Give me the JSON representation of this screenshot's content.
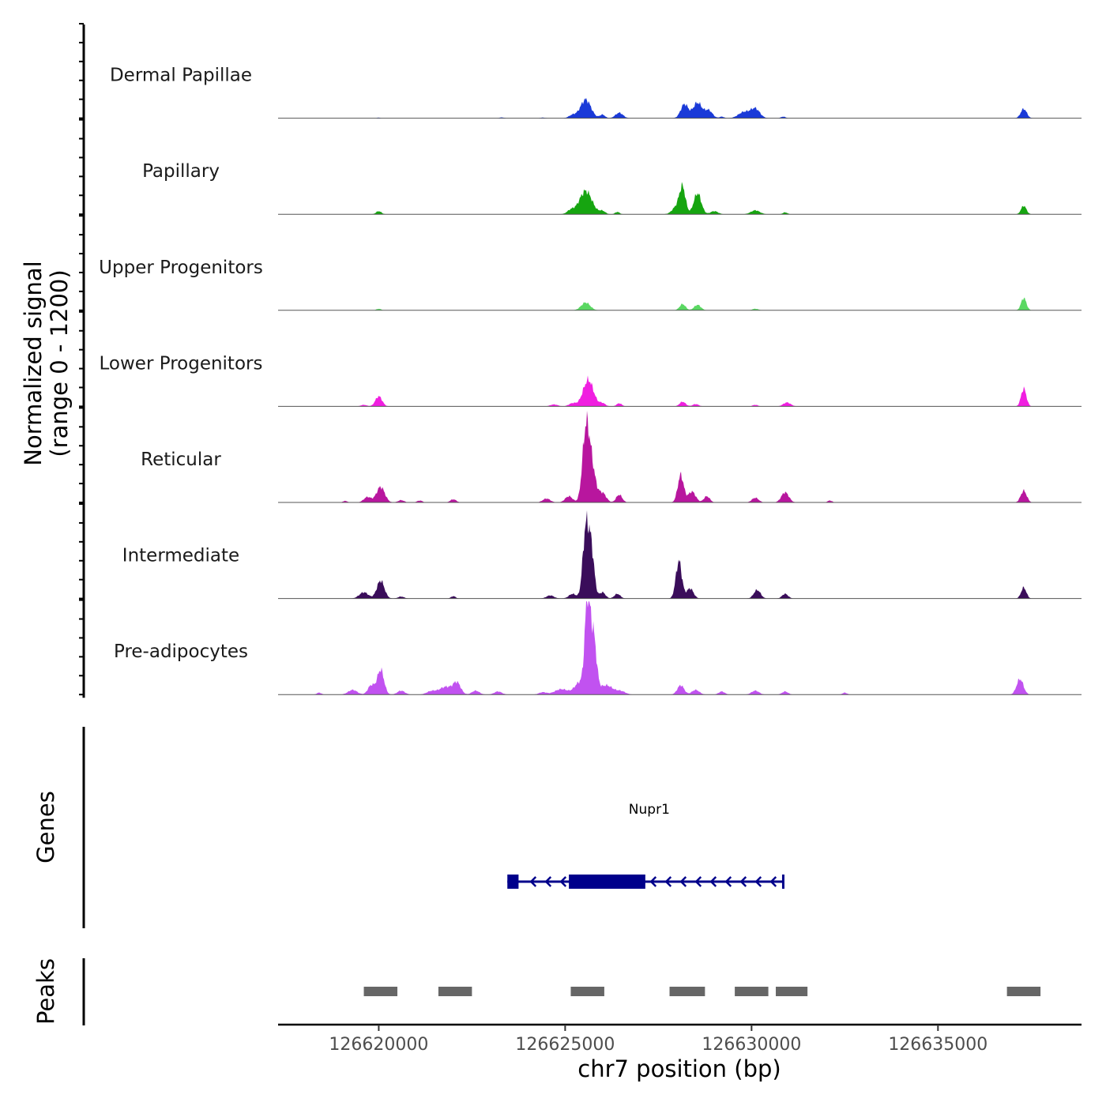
{
  "chart_data": {
    "type": "area",
    "subtype": "coverage-tracks",
    "chromosome": "chr7",
    "xlabel": "chr7 position (bp)",
    "ylabel_line1": "Normalized signal",
    "ylabel_line2": "(range 0 - 1200)",
    "xlim": [
      126617300,
      126638850
    ],
    "x_ticks": [
      {
        "value": 126620000,
        "label": "126620000"
      },
      {
        "value": 126625000,
        "label": "126625000"
      },
      {
        "value": 126630000,
        "label": "126630000"
      },
      {
        "value": 126635000,
        "label": "126635000"
      }
    ],
    "ylim": [
      0,
      1200
    ],
    "series": [
      {
        "name": "Dermal Papillae",
        "color": "#1a3ad8",
        "peaks": [
          [
            126620000,
            8,
            40
          ],
          [
            126623300,
            10,
            60
          ],
          [
            126624400,
            8,
            60
          ],
          [
            126625200,
            40,
            100
          ],
          [
            126625550,
            240,
            140
          ],
          [
            126626000,
            45,
            70
          ],
          [
            126626450,
            70,
            100
          ],
          [
            126628200,
            180,
            100
          ],
          [
            126628550,
            200,
            120
          ],
          [
            126628850,
            100,
            100
          ],
          [
            126629200,
            20,
            60
          ],
          [
            126629800,
            80,
            150
          ],
          [
            126630100,
            120,
            120
          ],
          [
            126630850,
            20,
            60
          ],
          [
            126637300,
            120,
            80
          ]
        ]
      },
      {
        "name": "Papillary",
        "color": "#16a510",
        "peaks": [
          [
            126620000,
            40,
            70
          ],
          [
            126625550,
            300,
            170
          ],
          [
            126625150,
            50,
            100
          ],
          [
            126626000,
            40,
            80
          ],
          [
            126626400,
            30,
            60
          ],
          [
            126628000,
            100,
            120
          ],
          [
            126628150,
            320,
            80
          ],
          [
            126628550,
            270,
            100
          ],
          [
            126629000,
            40,
            100
          ],
          [
            126630100,
            50,
            120
          ],
          [
            126630900,
            25,
            60
          ],
          [
            126637300,
            110,
            70
          ]
        ]
      },
      {
        "name": "Upper Progenitors",
        "color": "#5ad862",
        "peaks": [
          [
            126620000,
            20,
            60
          ],
          [
            126625550,
            100,
            120
          ],
          [
            126628150,
            80,
            80
          ],
          [
            126628550,
            70,
            90
          ],
          [
            126630100,
            20,
            80
          ],
          [
            126637300,
            160,
            70
          ]
        ]
      },
      {
        "name": "Lower Progenitors",
        "color": "#f01fe0",
        "peaks": [
          [
            126619600,
            20,
            80
          ],
          [
            126620000,
            130,
            90
          ],
          [
            126624700,
            25,
            100
          ],
          [
            126625200,
            40,
            100
          ],
          [
            126625620,
            340,
            140
          ],
          [
            126626000,
            40,
            80
          ],
          [
            126626450,
            40,
            70
          ],
          [
            126628150,
            60,
            80
          ],
          [
            126628500,
            30,
            80
          ],
          [
            126630100,
            20,
            70
          ],
          [
            126630950,
            50,
            100
          ],
          [
            126637300,
            230,
            70
          ]
        ]
      },
      {
        "name": "Reticular",
        "color": "#b8169e",
        "peaks": [
          [
            126619100,
            20,
            60
          ],
          [
            126619700,
            70,
            100
          ],
          [
            126620050,
            200,
            110
          ],
          [
            126620600,
            30,
            80
          ],
          [
            126621100,
            25,
            70
          ],
          [
            126622000,
            40,
            80
          ],
          [
            126624500,
            50,
            100
          ],
          [
            126625100,
            80,
            100
          ],
          [
            126625550,
            820,
            90
          ],
          [
            126625700,
            480,
            110
          ],
          [
            126626000,
            120,
            100
          ],
          [
            126626450,
            100,
            80
          ],
          [
            126628100,
            350,
            80
          ],
          [
            126628400,
            140,
            100
          ],
          [
            126628800,
            80,
            80
          ],
          [
            126630100,
            60,
            90
          ],
          [
            126630900,
            130,
            100
          ],
          [
            126632100,
            25,
            60
          ],
          [
            126637300,
            150,
            80
          ]
        ]
      },
      {
        "name": "Intermediate",
        "color": "#3a0d5a",
        "peaks": [
          [
            126619600,
            80,
            120
          ],
          [
            126620050,
            230,
            100
          ],
          [
            126620600,
            25,
            80
          ],
          [
            126622000,
            30,
            60
          ],
          [
            126624600,
            40,
            100
          ],
          [
            126625200,
            60,
            100
          ],
          [
            126625550,
            850,
            80
          ],
          [
            126625700,
            620,
            80
          ],
          [
            126626000,
            80,
            80
          ],
          [
            126626400,
            60,
            80
          ],
          [
            126628050,
            480,
            80
          ],
          [
            126628350,
            130,
            90
          ],
          [
            126630150,
            110,
            90
          ],
          [
            126630900,
            60,
            80
          ],
          [
            126637300,
            140,
            70
          ]
        ]
      },
      {
        "name": "Pre-adipocytes",
        "color": "#c152f0",
        "peaks": [
          [
            126618400,
            25,
            60
          ],
          [
            126619300,
            60,
            120
          ],
          [
            126619800,
            120,
            90
          ],
          [
            126620050,
            320,
            90
          ],
          [
            126620600,
            50,
            100
          ],
          [
            126621400,
            40,
            120
          ],
          [
            126621800,
            100,
            180
          ],
          [
            126622100,
            140,
            100
          ],
          [
            126622600,
            50,
            100
          ],
          [
            126623200,
            40,
            100
          ],
          [
            126624400,
            30,
            100
          ],
          [
            126624900,
            70,
            180
          ],
          [
            126625400,
            160,
            140
          ],
          [
            126625600,
            1200,
            70
          ],
          [
            126625760,
            720,
            80
          ],
          [
            126626100,
            120,
            180
          ],
          [
            126626500,
            40,
            120
          ],
          [
            126628100,
            120,
            90
          ],
          [
            126628500,
            60,
            100
          ],
          [
            126629200,
            40,
            80
          ],
          [
            126630100,
            50,
            100
          ],
          [
            126630900,
            40,
            80
          ],
          [
            126632500,
            25,
            60
          ],
          [
            126637200,
            200,
            90
          ]
        ]
      }
    ],
    "genes": [
      {
        "name": "Nupr1",
        "strand": "-",
        "start": 126623450,
        "end": 126630850,
        "color": "#00008b",
        "exons": [
          [
            126623450,
            126623750
          ],
          [
            126625100,
            126627150
          ]
        ]
      }
    ],
    "peaks_track": [
      [
        126619600,
        126620500
      ],
      [
        126621600,
        126622500
      ],
      [
        126625150,
        126626050
      ],
      [
        126627800,
        126628750
      ],
      [
        126629550,
        126630450
      ],
      [
        126630650,
        126631500
      ],
      [
        126636850,
        126637750
      ]
    ],
    "genes_track_label": "Genes",
    "peaks_track_label": "Peaks"
  }
}
